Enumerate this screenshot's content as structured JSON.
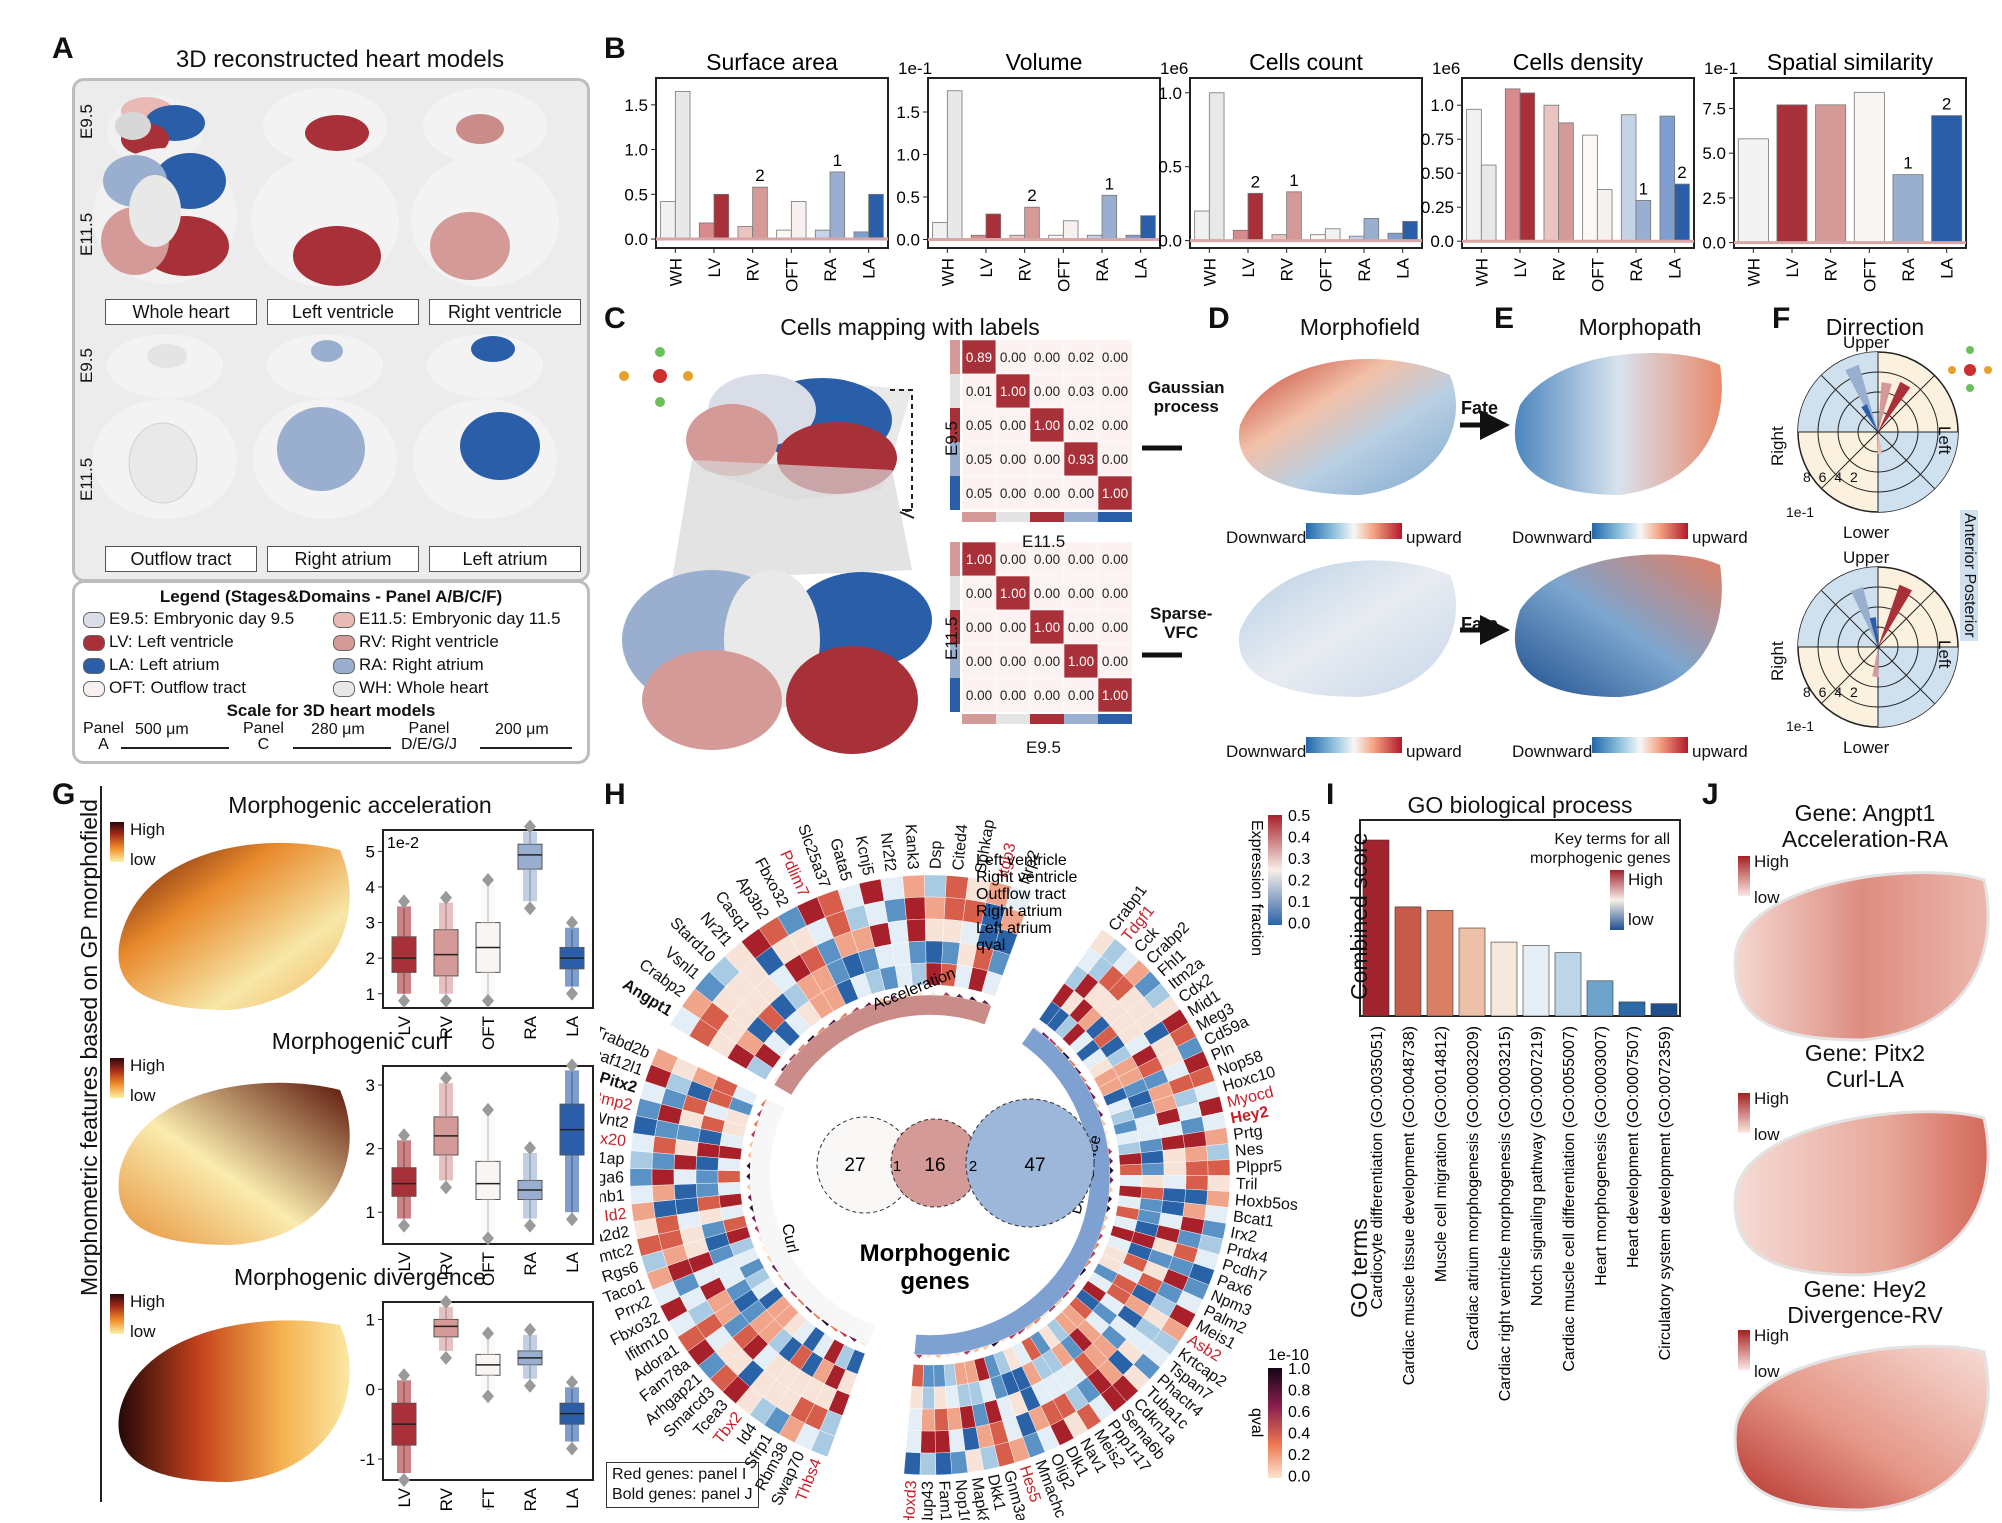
{
  "panels": {
    "A": {
      "letter": "A",
      "title": "3D reconstructed heart models",
      "stages": [
        "E9.5",
        "E11.5",
        "E9.5",
        "E11.5"
      ],
      "captions_top": [
        "Whole heart",
        "Left ventricle",
        "Right ventricle"
      ],
      "captions_bottom": [
        "Outflow tract",
        "Right atrium",
        "Left atrium"
      ],
      "legend_title": "Legend (Stages&Domains - Panel A/B/C/F)",
      "legend_items": [
        {
          "label": "E9.5: Embryonic day 9.5",
          "color": "#d9dde8"
        },
        {
          "label": "E11.5: Embryonic day 11.5",
          "color": "#e8b9b5"
        },
        {
          "label": "LV: Left ventricle",
          "color": "#a83038"
        },
        {
          "label": "RV: Right ventricle",
          "color": "#d49a98"
        },
        {
          "label": "LA: Left atrium",
          "color": "#2b5ea8"
        },
        {
          "label": "RA: Right atrium",
          "color": "#9aafcf"
        },
        {
          "label": "OFT: Outflow tract",
          "color": "#f6f1ee"
        },
        {
          "label": "WH: Whole heart",
          "color": "#e8e8e8"
        }
      ],
      "scale_title": "Scale for 3D heart models",
      "scales": [
        {
          "panel": "Panel",
          "which": "A",
          "value": "500 μm"
        },
        {
          "panel": "Panel",
          "which": "C",
          "value": "280 μm"
        },
        {
          "panel": "Panel",
          "which": "D/E/G/J",
          "value": "200 μm"
        }
      ]
    },
    "B": {
      "letter": "B",
      "charts": [
        {
          "title": "Surface area",
          "exp": "",
          "yticks": [
            "0.0",
            "0.5",
            "1.0",
            "1.5"
          ]
        },
        {
          "title": "Volume",
          "exp": "1e-1",
          "yticks": [
            "0.0",
            "0.5",
            "1.0",
            "1.5"
          ]
        },
        {
          "title": "Cells count",
          "exp": "1e6",
          "yticks": [
            "0.0",
            "0.5",
            "1.0"
          ]
        },
        {
          "title": "Cells density",
          "exp": "1e6",
          "yticks": [
            "0.0",
            "0.25",
            "0.50",
            "0.75",
            "1.0"
          ]
        },
        {
          "title": "Spatial similarity",
          "exp": "1e-1",
          "yticks": [
            "0.0",
            "2.5",
            "5.0",
            "7.5"
          ]
        }
      ],
      "categories": [
        "WH",
        "LV",
        "RV",
        "OFT",
        "RA",
        "LA"
      ],
      "rank_labels": [
        "1",
        "2"
      ]
    },
    "C": {
      "letter": "C",
      "title": "Cells mapping with labels",
      "heatmap_top": {
        "ylabel": "E9.5",
        "xlabel": "E11.5",
        "values": [
          [
            "0.89",
            "0.00",
            "0.00",
            "0.02",
            "0.00"
          ],
          [
            "0.01",
            "1.00",
            "0.00",
            "0.03",
            "0.00"
          ],
          [
            "0.05",
            "0.00",
            "1.00",
            "0.02",
            "0.00"
          ],
          [
            "0.05",
            "0.00",
            "0.00",
            "0.93",
            "0.00"
          ],
          [
            "0.05",
            "0.00",
            "0.00",
            "0.00",
            "1.00"
          ]
        ]
      },
      "heatmap_bottom": {
        "ylabel": "E11.5",
        "xlabel": "E9.5",
        "values": [
          [
            "1.00",
            "0.00",
            "0.00",
            "0.00",
            "0.00"
          ],
          [
            "0.00",
            "1.00",
            "0.00",
            "0.00",
            "0.00"
          ],
          [
            "0.00",
            "0.00",
            "1.00",
            "0.00",
            "0.00"
          ],
          [
            "0.00",
            "0.00",
            "0.00",
            "1.00",
            "0.00"
          ],
          [
            "0.00",
            "0.00",
            "0.00",
            "0.00",
            "1.00"
          ]
        ]
      },
      "method_top": [
        "Gaussian",
        "process"
      ],
      "method_bottom": [
        "Sparse-",
        "VFC"
      ]
    },
    "D": {
      "letter": "D",
      "title": "Morphofield",
      "cbar_left": "Downward",
      "cbar_right": "upward"
    },
    "E": {
      "letter": "E",
      "title": "Morphopath",
      "fate": "Fate",
      "cbar_left": "Downward",
      "cbar_right": "upward"
    },
    "F": {
      "letter": "F",
      "title": "Dirrection",
      "upper": "Upper",
      "lower": "Lower",
      "right": "Right",
      "left": "Left",
      "rticks": "8 6 4 2",
      "unit": "1e-1",
      "ap_label": "Anterior Posterior"
    },
    "G": {
      "letter": "G",
      "ylabel": "Morphometric features based on GP morphofield",
      "rows": [
        {
          "title": "Morphogenic acceleration",
          "exp": "1e-2",
          "yticks": [
            "1",
            "2",
            "3",
            "4",
            "5"
          ]
        },
        {
          "title": "Morphogenic curl",
          "exp": "",
          "yticks": [
            "1",
            "2",
            "3"
          ]
        },
        {
          "title": "Morphogenic divergence",
          "exp": "",
          "yticks": [
            "-1",
            "0",
            "1"
          ]
        }
      ],
      "categories": [
        "LV",
        "RV",
        "OFT",
        "RA",
        "LA"
      ],
      "high": "High",
      "low": "low"
    },
    "H": {
      "letter": "H",
      "row_labels": [
        "Left ventricle",
        "Right ventricle",
        "Outflow tract",
        "Right atrium",
        "Left atrium",
        "qval"
      ],
      "cbar_title": "Expression fraction",
      "cbar_ticks": [
        "0.5",
        "0.4",
        "0.3",
        "0.2",
        "0.1",
        "0.0"
      ],
      "qval_title": "qval",
      "qval_exp": "1e-10",
      "qval_ticks": [
        "1.0",
        "0.8",
        "0.6",
        "0.4",
        "0.2",
        "0.0"
      ],
      "sectors": [
        "Acceleration",
        "Curl",
        "Divergence"
      ],
      "venn": [
        "27",
        "1",
        "16",
        "2",
        "47"
      ],
      "center": [
        "Morphogenic",
        "genes"
      ],
      "note1": "Red genes: panel I",
      "note2": "Bold genes: panel J",
      "genes_accel": [
        "Angpt1",
        "Crabp2",
        "Vsnl1",
        "Stard10",
        "Nr2f1",
        "Casq1",
        "Ap3b2",
        "Fbxo32",
        "Pdlim7",
        "Slc25a37",
        "Gata5",
        "Kcnj5",
        "Nr2f2",
        "Kank3",
        "Dsp",
        "Cited4",
        "Sphkap",
        "Itgb3",
        "Nrp2"
      ],
      "genes_div": [
        "Crabp1",
        "Tdgf1",
        "Cck",
        "Crabp2",
        "Fhl1",
        "Itm2a",
        "Cdx2",
        "Mid1",
        "Meg3",
        "Cd59a",
        "Pln",
        "Nop58",
        "Hoxc10",
        "Myocd",
        "Hey2",
        "Prtg",
        "Nes",
        "Plppr5",
        "Tril",
        "Hoxb5os",
        "Bcat1",
        "Irx2",
        "Prdx4",
        "Pcdh7",
        "Pax6",
        "Npm3",
        "Palm2",
        "Meis1",
        "Asb2",
        "Krtcap2",
        "Tspan7",
        "Phactr4",
        "Tuba1c",
        "Cdkn1a",
        "Sema6b",
        "Ppp1r17",
        "Meis2",
        "Nav1",
        "Dlk1",
        "Olig2",
        "Mmachc",
        "Hes5",
        "Gnm3a",
        "Dkk1",
        "Mapk8ip1",
        "Nop10",
        "Fam186a",
        "Nup43",
        "Hoxd3"
      ],
      "genes_curl": [
        "Thbs4",
        "Swap70",
        "Rbm38",
        "Sfrp1",
        "Id4",
        "Tbx2",
        "Tcea3",
        "Smarcd3",
        "Arhgap21",
        "Fam78a",
        "Adora1",
        "Ifitm10",
        "Fbxo32",
        "Prrx2",
        "Taco1",
        "Rgs6",
        "Tmtc2",
        "Cacna2d2",
        "Id2",
        "Gnb1",
        "Itga6",
        "Nos1ap",
        "Tbx20",
        "Wnt2",
        "Bmp2",
        "Pitx2",
        "Dcaf12l1",
        "Trabd2b"
      ],
      "red_genes": [
        "Pdlim7",
        "Itgb3",
        "Tdgf1",
        "Myocd",
        "Hey2",
        "Asb2",
        "Hes5",
        "Hoxd3",
        "Thbs4",
        "Tbx2",
        "Id2",
        "Tbx20",
        "Bmp2"
      ],
      "bold_genes": [
        "Angpt1",
        "Hey2",
        "Pitx2"
      ]
    },
    "I": {
      "letter": "I",
      "title": "GO biological process",
      "ylabel": "Combined score",
      "xlabel": "GO terms",
      "note": [
        "Key terms for all",
        "morphogenic genes"
      ],
      "high": "High",
      "low": "low",
      "terms": [
        "Cardiocyte differentiation (GO:0035051)",
        "Cardiac muscle tissue development (GO:0048738)",
        "Muscle cell migration (GO:0014812)",
        "Cardiac atrium morphogenesis (GO:0003209)",
        "Cardiac right ventricle morphogenesis (GO:0003215)",
        "Notch signaling pathway (GO:0007219)",
        "Cardiac muscle cell differentiation (GO:0055007)",
        "Heart morphogenesis (GO:0003007)",
        "Heart development (GO:0007507)",
        "Circulatory system development (GO:0072359)"
      ],
      "scores": [
        1.0,
        0.62,
        0.6,
        0.5,
        0.42,
        0.4,
        0.36,
        0.2,
        0.08,
        0.07
      ],
      "colors": [
        "#a1232e",
        "#c75a48",
        "#d98064",
        "#ecc1a8",
        "#f7e8dc",
        "#e6eef5",
        "#bcd5e8",
        "#6ea3cc",
        "#2e6aa7",
        "#1f4f8e"
      ]
    },
    "J": {
      "letter": "J",
      "genes": [
        {
          "line1": "Gene: Angpt1",
          "line2": "Acceleration-RA"
        },
        {
          "line1": "Gene: Pitx2",
          "line2": "Curl-LA"
        },
        {
          "line1": "Gene: Hey2",
          "line2": "Divergence-RV"
        }
      ],
      "high": "High",
      "low": "low"
    }
  },
  "chart_data": [
    {
      "type": "bar",
      "title": "Surface area",
      "categories": [
        "WH",
        "LV",
        "RV",
        "OFT",
        "RA",
        "LA"
      ],
      "series": [
        {
          "values": [
            0.42,
            0.18,
            0.14,
            0.1,
            0.1,
            0.08
          ]
        },
        {
          "values": [
            1.65,
            0.5,
            0.58,
            0.42,
            0.75,
            0.5
          ]
        }
      ],
      "ylim": [
        -0.1,
        1.8
      ]
    },
    {
      "type": "bar",
      "title": "Volume",
      "categories": [
        "WH",
        "LV",
        "RV",
        "OFT",
        "RA",
        "LA"
      ],
      "series": [
        {
          "values": [
            0.2,
            0.05,
            0.05,
            0.05,
            0.05,
            0.05
          ]
        },
        {
          "values": [
            1.75,
            0.3,
            0.38,
            0.22,
            0.52,
            0.28
          ]
        }
      ],
      "ylim": [
        -0.1,
        1.9
      ]
    },
    {
      "type": "bar",
      "title": "Cells count",
      "categories": [
        "WH",
        "LV",
        "RV",
        "OFT",
        "RA",
        "LA"
      ],
      "series": [
        {
          "values": [
            0.2,
            0.07,
            0.04,
            0.04,
            0.03,
            0.05
          ]
        },
        {
          "values": [
            1.0,
            0.32,
            0.33,
            0.08,
            0.15,
            0.13
          ]
        }
      ],
      "ylim": [
        -0.05,
        1.1
      ]
    },
    {
      "type": "bar",
      "title": "Cells density",
      "categories": [
        "WH",
        "LV",
        "RV",
        "OFT",
        "RA",
        "LA"
      ],
      "series": [
        {
          "values": [
            0.97,
            1.12,
            1.0,
            0.78,
            0.93,
            0.92
          ]
        },
        {
          "values": [
            0.56,
            1.09,
            0.87,
            0.38,
            0.3,
            0.42
          ]
        }
      ],
      "ylim": [
        -0.05,
        1.2
      ]
    },
    {
      "type": "bar",
      "title": "Spatial similarity",
      "categories": [
        "WH",
        "LV",
        "RV",
        "OFT",
        "RA",
        "LA"
      ],
      "values": [
        5.8,
        7.7,
        7.7,
        8.4,
        3.8,
        7.1
      ],
      "ylim": [
        -0.3,
        9.2
      ]
    },
    {
      "type": "bar",
      "title": "GO biological process",
      "categories": [
        "Cardiocyte differentiation (GO:0035051)",
        "Cardiac muscle tissue development (GO:0048738)",
        "Muscle cell migration (GO:0014812)",
        "Cardiac atrium morphogenesis (GO:0003209)",
        "Cardiac right ventricle morphogenesis (GO:0003215)",
        "Notch signaling pathway (GO:0007219)",
        "Cardiac muscle cell differentiation (GO:0055007)",
        "Heart morphogenesis (GO:0003007)",
        "Heart development (GO:0007507)",
        "Circulatory system development (GO:0072359)"
      ],
      "values": [
        1.0,
        0.62,
        0.6,
        0.5,
        0.42,
        0.4,
        0.36,
        0.2,
        0.08,
        0.07
      ],
      "ylabel": "Combined score",
      "xlabel": "GO terms"
    }
  ]
}
